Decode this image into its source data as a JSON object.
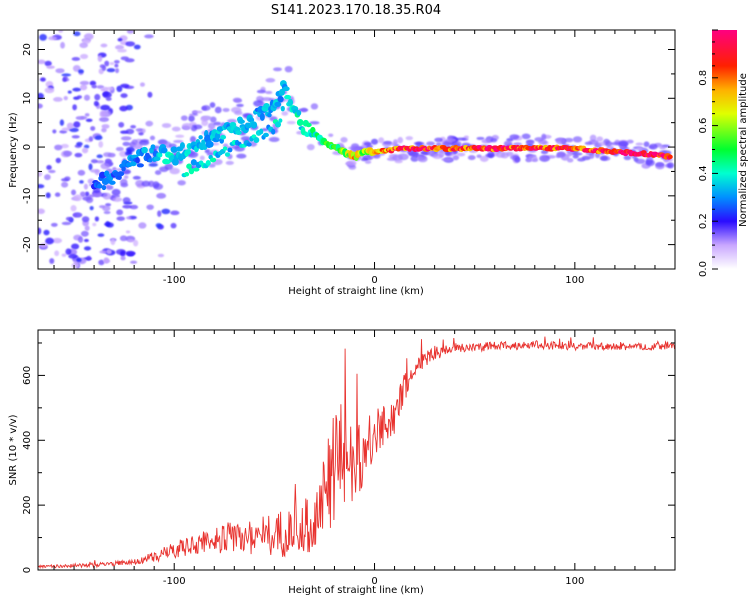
{
  "title": "S141.2023.170.18.35.R04",
  "chart_data": [
    {
      "type": "heatmap",
      "xlabel": "Height of straight line (km)",
      "ylabel": "Frequency (Hz)",
      "xlim": [
        -168,
        150
      ],
      "ylim": [
        -25,
        24
      ],
      "xticks": [
        -100,
        0,
        100
      ],
      "xtick_labels": [
        "-100",
        "0",
        "100"
      ],
      "yticks": [
        -20,
        -10,
        0,
        10,
        20
      ],
      "ytick_labels": [
        "-20",
        "-10",
        "0",
        "10",
        "20"
      ],
      "colorbar": {
        "label": "Normalized spectral amplitude",
        "range": [
          0,
          1
        ],
        "ticks": [
          0.0,
          0.2,
          0.4,
          0.6,
          0.8
        ],
        "tick_labels": [
          "0.0",
          "0.2",
          "0.4",
          "0.6",
          "0.8"
        ]
      },
      "ridge": {
        "x": [
          -140,
          -130,
          -120,
          -110,
          -100,
          -90,
          -80,
          -70,
          -60,
          -50,
          -45,
          -40,
          -35,
          -30,
          -25,
          -20,
          -15,
          -10,
          -5,
          0,
          10,
          20,
          40,
          60,
          80,
          100,
          120,
          140,
          148
        ],
        "frequency": [
          -8,
          -6,
          -3,
          -1,
          -2,
          0,
          2,
          4,
          6,
          8,
          12,
          8,
          4,
          3,
          1,
          0,
          -1,
          -2,
          -1,
          -1,
          -0.5,
          -0.3,
          -0.3,
          -0.3,
          -0.2,
          -0.3,
          -1,
          -1.5,
          -2
        ],
        "amplitude": [
          0.25,
          0.3,
          0.3,
          0.35,
          0.4,
          0.35,
          0.35,
          0.35,
          0.35,
          0.35,
          0.35,
          0.4,
          0.45,
          0.45,
          0.5,
          0.55,
          0.6,
          0.75,
          0.6,
          0.8,
          0.9,
          0.95,
          0.9,
          0.95,
          0.9,
          0.9,
          1.0,
          1.0,
          0.9
        ]
      }
    },
    {
      "type": "line",
      "xlabel": "Height of straight line (km)",
      "ylabel": "SNR (10 * v/v)",
      "xlim": [
        -168,
        150
      ],
      "ylim": [
        0,
        740
      ],
      "xticks": [
        -100,
        0,
        100
      ],
      "xtick_labels": [
        "-100",
        "0",
        "100"
      ],
      "yticks": [
        0,
        200,
        400,
        600
      ],
      "ytick_labels": [
        "0",
        "200",
        "400",
        "600"
      ],
      "line_color": "#e8322e",
      "trend": {
        "x": [
          -168,
          -140,
          -120,
          -110,
          -100,
          -90,
          -80,
          -70,
          -60,
          -50,
          -40,
          -30,
          -25,
          -20,
          -15,
          -10,
          -5,
          0,
          5,
          10,
          15,
          20,
          25,
          30,
          40,
          60,
          80,
          100,
          120,
          150
        ],
        "y": [
          10,
          15,
          25,
          40,
          60,
          80,
          95,
          100,
          105,
          110,
          120,
          150,
          230,
          320,
          330,
          340,
          360,
          400,
          450,
          480,
          560,
          620,
          650,
          670,
          685,
          690,
          695,
          690,
          688,
          690
        ]
      },
      "noise": {
        "x": [
          -168,
          -120,
          -100,
          -60,
          -30,
          -20,
          -10,
          0,
          20,
          40,
          150
        ],
        "amplitude": [
          4,
          8,
          25,
          60,
          90,
          180,
          120,
          90,
          30,
          15,
          10
        ]
      }
    }
  ]
}
